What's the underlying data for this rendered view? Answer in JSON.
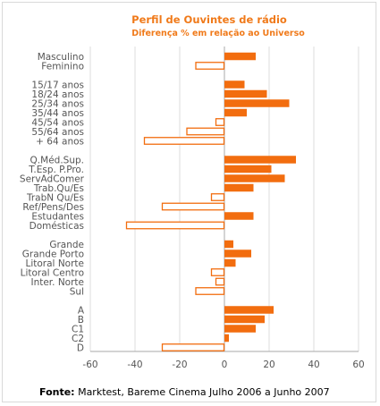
{
  "chart_data": {
    "type": "bar",
    "orientation": "horizontal",
    "title": "Perfil de Ouvintes de rádio",
    "subtitle": "Diferença % em relação ao Universo",
    "xlim": [
      -60,
      60
    ],
    "xticks": [
      -60,
      -40,
      -20,
      0,
      20,
      40,
      60
    ],
    "grid": true,
    "colors": {
      "positive": "#f26d0f",
      "negative_fill": "#ffffff",
      "negative_stroke": "#f26d0f",
      "axis": "#aaaaaa",
      "grid": "#dddddd"
    },
    "groups": [
      {
        "categories": [
          "Masculino",
          "Feminino"
        ],
        "values": [
          14,
          -13
        ]
      },
      {
        "categories": [
          "15/17 anos",
          "18/24 anos",
          "25/34 anos",
          "35/44 anos",
          "45/54 anos",
          "55/64 anos",
          "+ 64 anos"
        ],
        "values": [
          9,
          19,
          29,
          10,
          -4,
          -17,
          -36
        ]
      },
      {
        "categories": [
          "Q.Méd.Sup.",
          "T.Esp. P.Pro.",
          "ServAdComer",
          "Trab.Qu/Es",
          "TrabN Qu/Es",
          "Ref/Pens/Des",
          "Estudantes",
          "Domésticas"
        ],
        "values": [
          32,
          21,
          27,
          13,
          -6,
          -28,
          13,
          -44
        ]
      },
      {
        "categories": [
          "Grande",
          "Grande Porto",
          "Litoral Norte",
          "Litoral Centro",
          "Inter. Norte",
          "Sul"
        ],
        "values": [
          4,
          12,
          5,
          -6,
          -4,
          -13
        ]
      },
      {
        "categories": [
          "A",
          "B",
          "C1",
          "C2",
          "D"
        ],
        "values": [
          22,
          18,
          14,
          2,
          -28
        ]
      }
    ]
  },
  "source": {
    "label": "Fonte:",
    "text": " Marktest, Bareme Cinema Julho 2006 a Junho 2007"
  }
}
